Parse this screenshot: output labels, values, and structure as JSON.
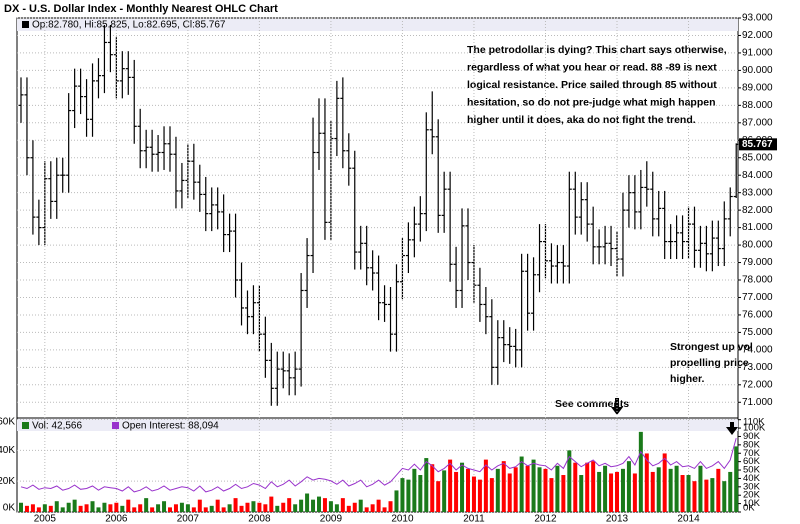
{
  "title": "DX - U.S. Dollar Index - Monthly Nearest OHLC Chart",
  "chart_data": [
    {
      "type": "ohlc",
      "legend_label": "Op:82.780, Hi:85.825, Lo:82.695, Cl:85.767",
      "color": "#000000",
      "ylim": [
        70.1,
        93
      ],
      "yticks": [
        {
          "value": 71,
          "label": "71.000"
        },
        {
          "value": 72,
          "label": "72.000"
        },
        {
          "value": 73,
          "label": "73.000"
        },
        {
          "value": 74,
          "label": "74.000"
        },
        {
          "value": 75,
          "label": "75.000"
        },
        {
          "value": 76,
          "label": "76.000"
        },
        {
          "value": 77,
          "label": "77.000"
        },
        {
          "value": 78,
          "label": "78.000"
        },
        {
          "value": 79,
          "label": "79.000"
        },
        {
          "value": 80,
          "label": "80.000"
        },
        {
          "value": 81,
          "label": "81.000"
        },
        {
          "value": 82,
          "label": "82.000"
        },
        {
          "value": 83,
          "label": "83.000"
        },
        {
          "value": 84,
          "label": "84.000"
        },
        {
          "value": 85,
          "label": "85.000"
        },
        {
          "value": 86,
          "label": "86.000"
        },
        {
          "value": 87,
          "label": "87.000"
        },
        {
          "value": 88,
          "label": "88.000"
        },
        {
          "value": 89,
          "label": "89.000"
        },
        {
          "value": 90,
          "label": "90.000"
        },
        {
          "value": 91,
          "label": "91.000"
        },
        {
          "value": 92,
          "label": "92.000"
        },
        {
          "value": 93,
          "label": "93.000"
        }
      ],
      "grid": true,
      "open": [
        88.0,
        88.6,
        85.0,
        81.6,
        81.0,
        83.8,
        82.5,
        84.0,
        84.0,
        87.7,
        89.1,
        88.5,
        87.2,
        89.4,
        89.7,
        91.6,
        90.9,
        89.4,
        90.1,
        89.6,
        86.8,
        85.4,
        85.6,
        85.2,
        85.3,
        85.8,
        85.2,
        83.1,
        83.7,
        84.8,
        83.6,
        82.9,
        81.8,
        82.3,
        81.9,
        80.6,
        80.8,
        78.0,
        76.4,
        75.9,
        76.7,
        74.9,
        73.4,
        71.8,
        72.9,
        72.8,
        72.4,
        72.9,
        77.4,
        79.4,
        85.3,
        86.4,
        81.3,
        86.1,
        88.4,
        85.4,
        84.4,
        79.6,
        80.1,
        78.7,
        78.4,
        76.7,
        76.6,
        74.9,
        77.9,
        79.4,
        80.3,
        81.2,
        81.8,
        86.6,
        86.2,
        81.7,
        83.2,
        78.9,
        77.4,
        81.1,
        79.0,
        77.7,
        76.6,
        75.9,
        73.0,
        74.7,
        74.3,
        74.2,
        74.0,
        78.5,
        76.1,
        78.3,
        80.2,
        79.1,
        78.8,
        79.0,
        78.8,
        83.2,
        81.6,
        82.6,
        81.2,
        79.9,
        79.9,
        80.1,
        79.8,
        79.2,
        82.0,
        83.0,
        81.9,
        83.3,
        83.2,
        81.5,
        82.1,
        80.2,
        80.2,
        80.7,
        80.2,
        81.2,
        79.7,
        80.1,
        79.5,
        80.4,
        79.8,
        81.5,
        82.78
      ],
      "high": [
        89.6,
        89.6,
        86.0,
        82.6,
        84.8,
        84.8,
        85.0,
        85.0,
        88.7,
        90.1,
        90.1,
        89.5,
        90.4,
        90.7,
        92.6,
        92.6,
        91.9,
        91.1,
        91.1,
        90.6,
        87.8,
        86.6,
        86.6,
        86.3,
        86.8,
        86.8,
        86.2,
        84.7,
        85.8,
        85.8,
        84.6,
        83.9,
        83.3,
        83.3,
        82.9,
        81.8,
        81.8,
        79.0,
        77.4,
        77.7,
        77.7,
        75.9,
        74.4,
        73.9,
        73.9,
        73.8,
        73.9,
        78.4,
        80.4,
        87.3,
        88.4,
        88.4,
        87.1,
        89.4,
        89.6,
        86.4,
        85.4,
        81.1,
        81.1,
        79.7,
        79.4,
        77.7,
        77.6,
        78.9,
        80.4,
        81.3,
        82.2,
        82.8,
        87.6,
        88.8,
        87.2,
        84.2,
        84.2,
        79.9,
        82.1,
        82.1,
        80.0,
        78.7,
        77.6,
        76.9,
        75.7,
        75.7,
        75.3,
        75.2,
        79.5,
        79.5,
        79.3,
        81.2,
        81.2,
        80.1,
        80.0,
        80.0,
        84.2,
        84.2,
        83.6,
        83.6,
        82.2,
        80.9,
        81.1,
        81.1,
        80.8,
        83.0,
        84.0,
        84.0,
        84.3,
        84.8,
        84.2,
        83.1,
        83.1,
        81.2,
        81.7,
        81.7,
        82.2,
        82.2,
        81.1,
        81.1,
        81.4,
        81.4,
        82.5,
        83.3,
        85.825
      ],
      "low": [
        87.0,
        84.0,
        80.6,
        80.0,
        80.0,
        81.5,
        81.5,
        83.0,
        83.0,
        86.7,
        87.5,
        86.2,
        86.2,
        88.4,
        88.7,
        89.9,
        88.4,
        88.4,
        88.6,
        85.8,
        84.4,
        84.4,
        84.2,
        84.2,
        84.3,
        84.2,
        82.1,
        82.1,
        82.7,
        82.6,
        81.9,
        80.8,
        80.8,
        80.9,
        79.6,
        79.6,
        77.0,
        75.4,
        74.9,
        74.9,
        73.9,
        72.4,
        70.8,
        70.8,
        71.8,
        71.4,
        71.4,
        71.9,
        76.4,
        78.4,
        84.3,
        80.3,
        80.3,
        85.1,
        84.4,
        83.4,
        78.6,
        78.6,
        77.7,
        77.4,
        75.7,
        75.6,
        73.9,
        73.9,
        76.9,
        78.4,
        79.3,
        80.2,
        80.8,
        85.2,
        80.7,
        80.7,
        77.9,
        76.4,
        76.4,
        78.0,
        76.7,
        75.6,
        74.9,
        72.0,
        72.0,
        73.3,
        73.2,
        73.0,
        73.0,
        75.1,
        75.1,
        77.3,
        78.1,
        77.8,
        77.8,
        77.8,
        77.8,
        80.6,
        80.6,
        80.2,
        78.9,
        78.9,
        78.9,
        78.8,
        78.2,
        78.2,
        81.0,
        80.9,
        80.9,
        82.2,
        80.5,
        80.5,
        79.2,
        79.2,
        79.2,
        79.2,
        79.2,
        78.7,
        78.7,
        78.5,
        78.5,
        78.8,
        78.8,
        80.5,
        82.695
      ],
      "close": [
        88.6,
        85.0,
        81.6,
        81.0,
        83.8,
        82.5,
        84.0,
        84.0,
        87.7,
        89.1,
        88.5,
        87.2,
        89.4,
        89.7,
        91.6,
        90.9,
        89.4,
        90.1,
        89.6,
        86.8,
        85.4,
        85.6,
        85.2,
        85.3,
        85.8,
        85.2,
        83.1,
        83.7,
        84.8,
        83.6,
        82.9,
        81.8,
        82.3,
        81.9,
        80.6,
        80.8,
        78.0,
        76.4,
        75.9,
        76.7,
        74.9,
        73.4,
        71.8,
        72.9,
        72.8,
        72.4,
        72.9,
        77.4,
        79.4,
        85.3,
        86.4,
        81.3,
        86.1,
        88.4,
        85.4,
        84.4,
        79.6,
        80.1,
        78.7,
        78.4,
        76.7,
        76.6,
        74.9,
        77.9,
        79.4,
        80.3,
        81.2,
        81.8,
        86.6,
        86.2,
        81.7,
        83.2,
        78.9,
        77.4,
        81.1,
        79.0,
        77.7,
        76.6,
        75.9,
        73.0,
        74.7,
        74.3,
        74.2,
        74.0,
        78.5,
        76.1,
        78.3,
        80.2,
        79.1,
        78.8,
        79.0,
        78.8,
        83.2,
        81.6,
        82.6,
        81.2,
        79.9,
        79.9,
        80.1,
        79.8,
        79.2,
        82.0,
        83.0,
        81.9,
        83.3,
        83.2,
        81.5,
        82.1,
        80.2,
        80.2,
        80.7,
        80.2,
        81.2,
        79.7,
        80.1,
        79.5,
        80.4,
        79.8,
        81.5,
        82.78,
        85.767
      ],
      "annotations": [
        [
          "The petrodollar is dying?  This chart says otherwise,",
          "regardless of what you hear or read.  88 -89 is next",
          "logical resistance.  Price sailed through 85 without",
          "hesitation, so do not pre-judge what migh happen",
          "higher until it does, aka do not fight the trend."
        ],
        [
          "Strongest up vol",
          "propelling price",
          "higher."
        ]
      ]
    },
    {
      "type": "bar",
      "categories": [
        null,
        null,
        null,
        null,
        "2005",
        null,
        null,
        null,
        null,
        null,
        null,
        null,
        null,
        null,
        null,
        null,
        "2006",
        null,
        null,
        null,
        null,
        null,
        null,
        null,
        null,
        null,
        null,
        null,
        "2007",
        null,
        null,
        null,
        null,
        null,
        null,
        null,
        null,
        null,
        null,
        null,
        "2008",
        null,
        null,
        null,
        null,
        null,
        null,
        null,
        null,
        null,
        null,
        null,
        "2009",
        null,
        null,
        null,
        null,
        null,
        null,
        null,
        null,
        null,
        null,
        null,
        "2010",
        null,
        null,
        null,
        null,
        null,
        null,
        null,
        null,
        null,
        null,
        null,
        "2011",
        null,
        null,
        null,
        null,
        null,
        null,
        null,
        null,
        null,
        null,
        null,
        "2012",
        null,
        null,
        null,
        null,
        null,
        null,
        null,
        null,
        null,
        null,
        null,
        "2013",
        null,
        null,
        null,
        null,
        null,
        null,
        null,
        null,
        null,
        null,
        null,
        "2014",
        null,
        null,
        null,
        null,
        null,
        null,
        null,
        null
      ],
      "ylim": [
        0,
        61000
      ],
      "yticks": [
        {
          "value": 0,
          "label": "0K"
        },
        {
          "value": 20000,
          "label": "20K"
        },
        {
          "value": 40000,
          "label": "40K"
        },
        {
          "value": 60000,
          "label": "60K"
        }
      ],
      "y2lim": [
        0,
        112000
      ],
      "y2ticks": [
        {
          "value": 0,
          "label": "0K"
        },
        {
          "value": 10000,
          "label": "10K"
        },
        {
          "value": 20000,
          "label": "20K"
        },
        {
          "value": 30000,
          "label": "30K"
        },
        {
          "value": 40000,
          "label": "40K"
        },
        {
          "value": 50000,
          "label": "50K"
        },
        {
          "value": 60000,
          "label": "60K"
        },
        {
          "value": 70000,
          "label": "70K"
        },
        {
          "value": 80000,
          "label": "80K"
        },
        {
          "value": 90000,
          "label": "90K"
        },
        {
          "value": 100000,
          "label": "100K"
        },
        {
          "value": 110000,
          "label": "110K"
        }
      ],
      "series": [
        {
          "name": "Vol: 42,566",
          "color": "#1a7a1a",
          "up_color": "#1a7a1a",
          "down_color": "#ff0000",
          "values": [
            6000,
            4000,
            5000,
            3000,
            5000,
            4000,
            7000,
            3000,
            6000,
            8000,
            4000,
            5000,
            7000,
            3000,
            6000,
            5000,
            6000,
            4000,
            8000,
            3000,
            5000,
            9000,
            3000,
            5000,
            7000,
            3000,
            5000,
            6000,
            5000,
            3000,
            8000,
            3000,
            4000,
            8000,
            3000,
            5000,
            9000,
            4000,
            6000,
            7000,
            6000,
            5000,
            10000,
            4000,
            6000,
            9000,
            5000,
            8000,
            12000,
            8000,
            10000,
            9000,
            7000,
            5000,
            9000,
            4000,
            6000,
            8000,
            3000,
            5000,
            8000,
            3000,
            7000,
            14000,
            22000,
            21000,
            28000,
            24000,
            35000,
            31000,
            20000,
            27000,
            34000,
            26000,
            32000,
            28000,
            23000,
            21000,
            34000,
            22000,
            28000,
            33000,
            25000,
            29000,
            36000,
            30000,
            34000,
            29000,
            28000,
            22000,
            30000,
            24000,
            40000,
            32000,
            24000,
            32000,
            33000,
            26000,
            30000,
            25000,
            26000,
            28000,
            33000,
            25000,
            52000,
            38000,
            26000,
            29000,
            38000,
            28000,
            30000,
            24000,
            24000,
            20000,
            30000,
            21000,
            22000,
            28000,
            20000,
            26000,
            42566
          ]
        },
        {
          "name": "Open Interest: 88,094",
          "color": "#9933cc",
          "axis": "y2",
          "values": [
            30000,
            28000,
            32000,
            27000,
            29000,
            28000,
            31000,
            26000,
            28000,
            32000,
            27000,
            28000,
            31000,
            26000,
            30000,
            29000,
            28000,
            25000,
            30000,
            24000,
            26000,
            30000,
            25000,
            27000,
            31000,
            26000,
            28000,
            30000,
            29000,
            25000,
            31000,
            24000,
            26000,
            30000,
            25000,
            28000,
            33000,
            28000,
            30000,
            34000,
            32000,
            28000,
            36000,
            30000,
            33000,
            38000,
            31000,
            36000,
            42000,
            38000,
            40000,
            39000,
            37000,
            33000,
            38000,
            31000,
            34000,
            38000,
            30000,
            33000,
            38000,
            32000,
            36000,
            44000,
            52000,
            50000,
            57000,
            50000,
            60000,
            55000,
            48000,
            52000,
            58000,
            50000,
            56000,
            52000,
            50000,
            48000,
            56000,
            50000,
            55000,
            58000,
            52000,
            54000,
            60000,
            55000,
            58000,
            56000,
            55000,
            50000,
            58000,
            52000,
            66000,
            60000,
            54000,
            58000,
            62000,
            55000,
            58000,
            54000,
            55000,
            58000,
            66000,
            56000,
            72000,
            62000,
            55000,
            58000,
            64000,
            56000,
            60000,
            54000,
            55000,
            52000,
            60000,
            52000,
            55000,
            60000,
            52000,
            62000,
            88094
          ]
        }
      ],
      "annotation": "See comments"
    }
  ]
}
